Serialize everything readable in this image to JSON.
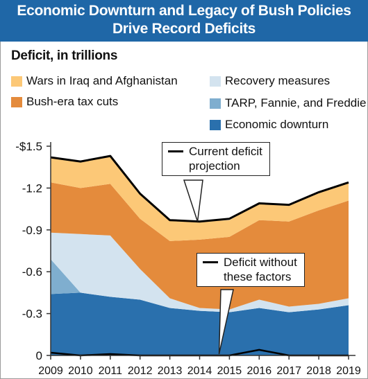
{
  "header": {
    "title_line1": "Economic Downturn and Legacy of Bush Policies",
    "title_line2": "Drive Record Deficits"
  },
  "subtitle": "Deficit, in trillions",
  "legend": {
    "wars": "Wars in Iraq and Afghanistan",
    "tax": "Bush-era tax cuts",
    "recovery": "Recovery measures",
    "tarp": "TARP, Fannie, and Freddie",
    "downturn": "Economic downturn"
  },
  "callouts": {
    "current_line1": "Current deficit",
    "current_line2": "projection",
    "without_line1": "Deficit without",
    "without_line2": "these factors"
  },
  "colors": {
    "header_bg": "#1f67a7",
    "wars": "#fcc877",
    "tax": "#e48b3c",
    "recovery": "#d3e3ef",
    "tarp": "#7faecf",
    "downturn": "#2a70ad",
    "line": "#000000"
  },
  "chart_data": {
    "type": "area",
    "title": "Economic Downturn and Legacy of Bush Policies Drive Record Deficits",
    "ylabel": "Deficit, in trillions",
    "x": [
      "2009",
      "2010",
      "2011",
      "2012",
      "2013",
      "2014",
      "2015",
      "2016",
      "2017",
      "2018",
      "2019"
    ],
    "y_ticks": [
      "-$1.5",
      "-1.2",
      "-0.9",
      "-0.6",
      "-0.3",
      "0"
    ],
    "ylim": [
      0,
      1.5
    ],
    "grid": false,
    "series": [
      {
        "key": "downturn",
        "name": "Economic downturn",
        "values": [
          0.44,
          0.45,
          0.42,
          0.4,
          0.34,
          0.32,
          0.31,
          0.34,
          0.31,
          0.33,
          0.36
        ]
      },
      {
        "key": "tarp",
        "name": "TARP, Fannie, and Freddie",
        "values": [
          0.25,
          0.0,
          0.0,
          0.0,
          0.0,
          0.0,
          0.0,
          0.0,
          0.0,
          0.0,
          0.0
        ]
      },
      {
        "key": "recovery",
        "name": "Recovery measures",
        "values": [
          0.19,
          0.42,
          0.44,
          0.22,
          0.07,
          0.02,
          0.02,
          0.06,
          0.04,
          0.04,
          0.05
        ]
      },
      {
        "key": "tax",
        "name": "Bush-era tax cuts",
        "values": [
          0.36,
          0.33,
          0.37,
          0.36,
          0.41,
          0.49,
          0.52,
          0.57,
          0.61,
          0.67,
          0.7
        ]
      },
      {
        "key": "wars",
        "name": "Wars in Iraq and Afghanistan",
        "values": [
          0.18,
          0.19,
          0.2,
          0.18,
          0.15,
          0.13,
          0.12,
          0.12,
          0.12,
          0.13,
          0.13
        ]
      }
    ],
    "lines": [
      {
        "key": "current",
        "name": "Current deficit projection",
        "values": [
          1.42,
          1.39,
          1.43,
          1.16,
          0.97,
          0.96,
          0.98,
          1.09,
          1.08,
          1.17,
          1.24
        ]
      },
      {
        "key": "without",
        "name": "Deficit without these factors",
        "values": [
          0.02,
          0.0,
          0.01,
          0.0,
          0.0,
          0.0,
          0.0,
          0.04,
          0.0,
          0.0,
          0.0
        ]
      }
    ]
  }
}
